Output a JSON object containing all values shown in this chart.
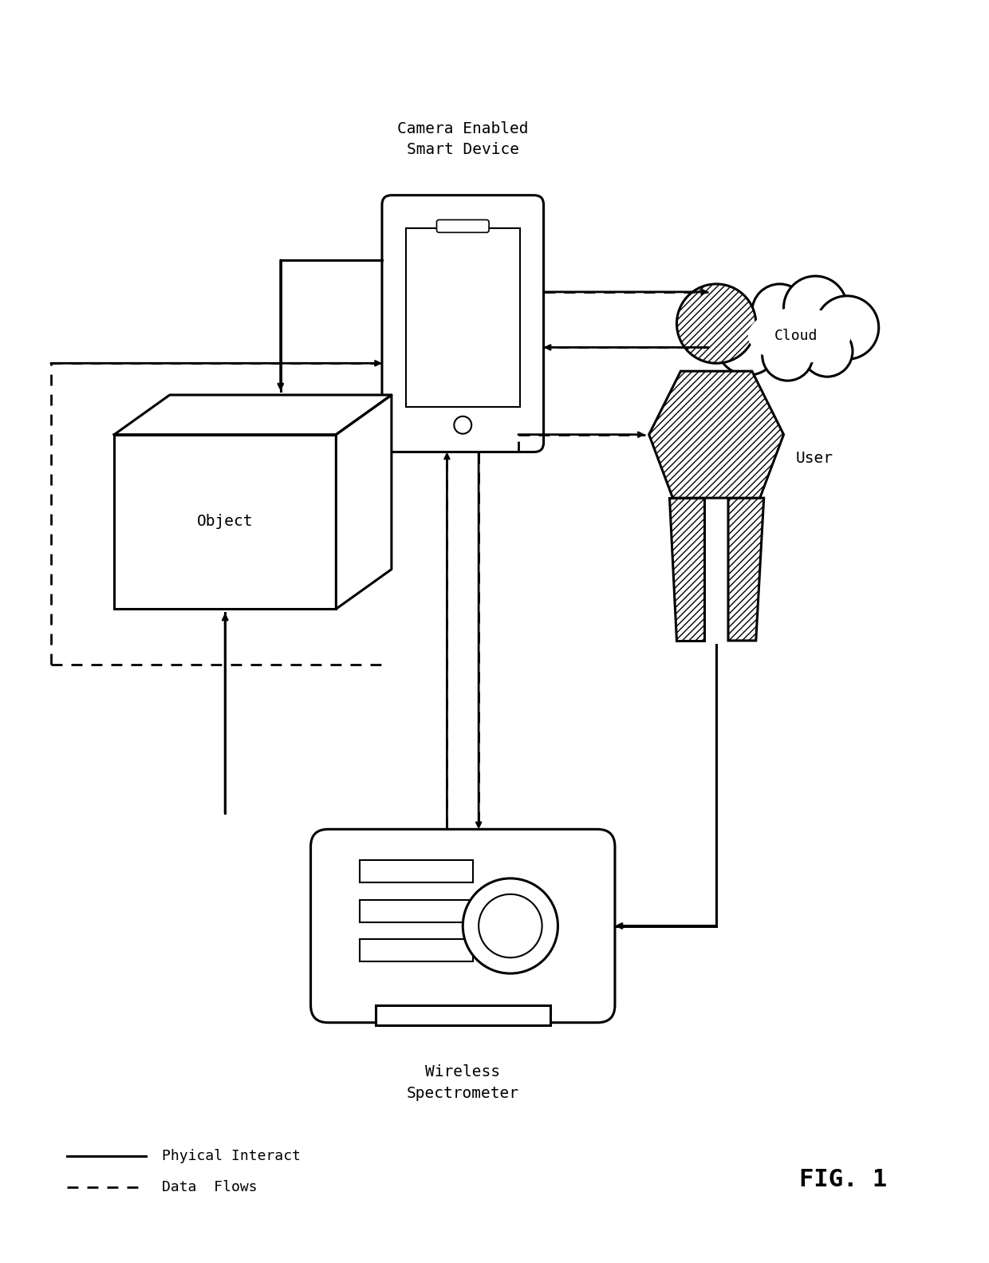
{
  "background_color": "#ffffff",
  "fig_label": "FIG. 1",
  "smart_device_label": "Camera Enabled\nSmart Device",
  "cloud_label": "Cloud",
  "object_label": "Object",
  "user_label": "User",
  "spectrometer_label": "Wireless\nSpectrometer",
  "legend_solid": "Phyical Interact",
  "legend_dashed": "Data  Flows",
  "line_color": "#000000",
  "lw_solid": 2.2,
  "lw_dashed": 2.0,
  "font_size": 13
}
